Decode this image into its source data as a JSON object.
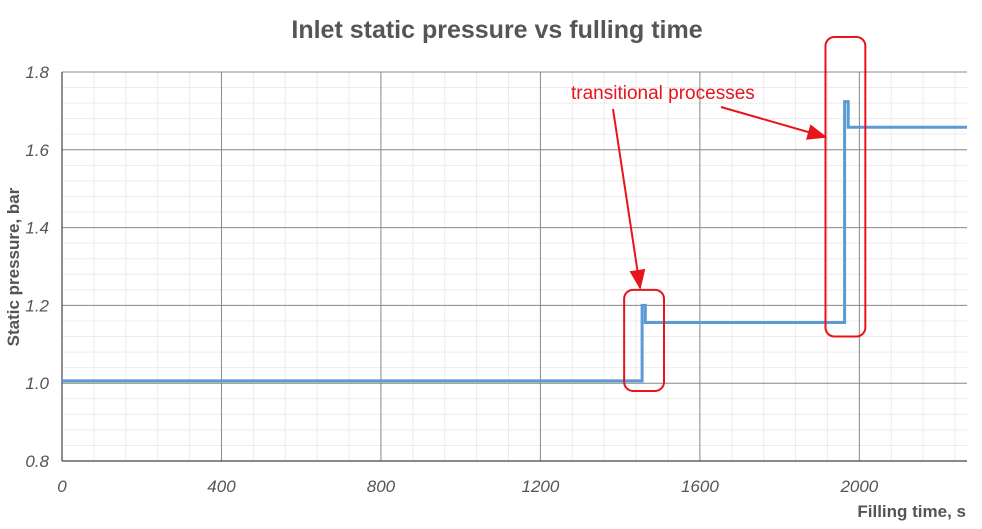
{
  "chart_data": {
    "type": "line",
    "title": "Inlet static pressure vs fulling time",
    "xlabel": "Filling time, s",
    "ylabel": "Static pressure, bar",
    "xlim": [
      0,
      2270
    ],
    "ylim": [
      0.8,
      1.8
    ],
    "x_ticks": [
      0,
      400,
      800,
      1200,
      1600,
      2000
    ],
    "y_ticks": [
      0.8,
      1.0,
      1.2,
      1.4,
      1.6,
      1.8
    ],
    "x_tick_labels": [
      "0",
      "400",
      "800",
      "1200",
      "1600",
      "2000"
    ],
    "y_tick_labels": [
      "0.8",
      "1.0",
      "1.2",
      "1.4",
      "1.6",
      "1.8"
    ],
    "grid": true,
    "minor_grid": true,
    "series_color": "#5b9bd5",
    "series": [
      {
        "x": [
          0,
          1455,
          1455,
          1463,
          1463,
          1963,
          1963,
          1972,
          1972,
          2270
        ],
        "y": [
          1.006,
          1.006,
          1.2,
          1.2,
          1.156,
          1.156,
          1.724,
          1.724,
          1.658,
          1.658
        ]
      }
    ],
    "annotation": {
      "text": "transitional processes",
      "color": "#e8141b",
      "regions": [
        {
          "x": [
            1410,
            1510
          ],
          "y": [
            0.98,
            1.24
          ]
        },
        {
          "x": [
            1915,
            2015
          ],
          "y": [
            1.12,
            1.89
          ]
        }
      ]
    }
  }
}
